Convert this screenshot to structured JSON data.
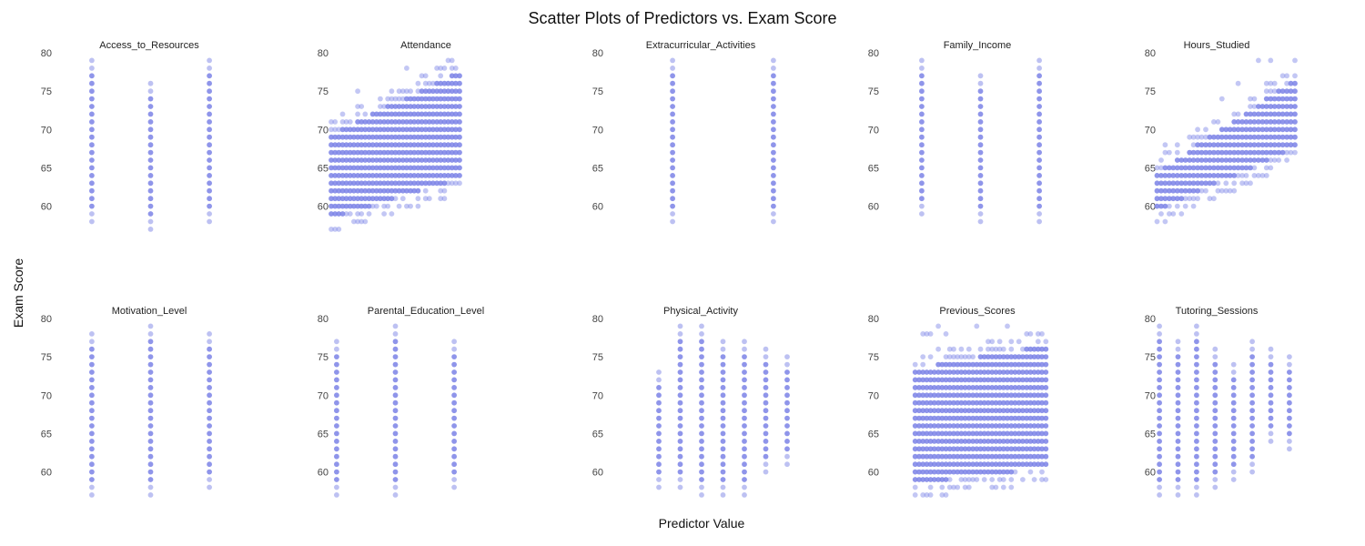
{
  "figure": {
    "title": "Scatter Plots of Predictors vs. Exam Score",
    "xlabel": "Predictor Value",
    "ylabel": "Exam Score",
    "point_color": "#7b83e6"
  },
  "chart_data": [
    {
      "type": "scatter",
      "title": "Access_to_Resources",
      "ylim": [
        56,
        80
      ],
      "yticks": [
        60,
        65,
        70,
        75,
        80
      ],
      "xlim": [
        -0.2,
        2.2
      ],
      "series": [
        {
          "x": 0,
          "y_range": [
            58,
            79
          ]
        },
        {
          "x": 1,
          "y_range": [
            57,
            76
          ]
        },
        {
          "x": 2,
          "y_range": [
            58,
            79
          ]
        }
      ]
    },
    {
      "type": "scatter",
      "title": "Attendance",
      "ylim": [
        56,
        80
      ],
      "yticks": [
        60,
        65,
        70,
        75,
        80
      ],
      "xlim": [
        58,
        102
      ],
      "trend": {
        "x_range": [
          60,
          100
        ],
        "y_low": [
          57,
          62
        ],
        "y_high": [
          71,
          79
        ]
      }
    },
    {
      "type": "scatter",
      "title": "Extracurricular_Activities",
      "ylim": [
        56,
        80
      ],
      "yticks": [
        60,
        65,
        70,
        75,
        80
      ],
      "xlim": [
        -0.2,
        1.2
      ],
      "series": [
        {
          "x": 0,
          "y_range": [
            58,
            79
          ]
        },
        {
          "x": 1,
          "y_range": [
            58,
            79
          ]
        }
      ]
    },
    {
      "type": "scatter",
      "title": "Family_Income",
      "ylim": [
        56,
        80
      ],
      "yticks": [
        60,
        65,
        70,
        75,
        80
      ],
      "xlim": [
        -0.2,
        2.2
      ],
      "series": [
        {
          "x": 0,
          "y_range": [
            59,
            79
          ]
        },
        {
          "x": 1,
          "y_range": [
            58,
            77
          ]
        },
        {
          "x": 2,
          "y_range": [
            58,
            79
          ]
        }
      ]
    },
    {
      "type": "scatter",
      "title": "Hours_Studied",
      "ylim": [
        56,
        80
      ],
      "yticks": [
        60,
        65,
        70,
        75,
        80
      ],
      "xlim": [
        0,
        44
      ],
      "trend": {
        "x_range": [
          1,
          44
        ],
        "y_low": [
          58,
          66
        ],
        "y_high": [
          66,
          78
        ]
      }
    },
    {
      "type": "scatter",
      "title": "Motivation_Level",
      "ylim": [
        56,
        80
      ],
      "yticks": [
        60,
        65,
        70,
        75,
        80
      ],
      "xlim": [
        -0.2,
        2.2
      ],
      "series": [
        {
          "x": 0,
          "y_range": [
            57,
            78
          ]
        },
        {
          "x": 1,
          "y_range": [
            57,
            79
          ]
        },
        {
          "x": 2,
          "y_range": [
            58,
            78
          ]
        }
      ]
    },
    {
      "type": "scatter",
      "title": "Parental_Education_Level",
      "ylim": [
        56,
        80
      ],
      "yticks": [
        60,
        65,
        70,
        75,
        80
      ],
      "xlim": [
        -0.2,
        2.2
      ],
      "series": [
        {
          "x": 0,
          "y_range": [
            57,
            77
          ]
        },
        {
          "x": 1,
          "y_range": [
            57,
            79
          ]
        },
        {
          "x": 2,
          "y_range": [
            58,
            77
          ]
        }
      ]
    },
    {
      "type": "scatter",
      "title": "Physical_Activity",
      "ylim": [
        56,
        80
      ],
      "yticks": [
        60,
        65,
        70,
        75,
        80
      ],
      "xlim": [
        -0.3,
        6.3
      ],
      "series": [
        {
          "x": 0,
          "y_range": [
            58,
            73
          ]
        },
        {
          "x": 1,
          "y_range": [
            58,
            79
          ]
        },
        {
          "x": 2,
          "y_range": [
            57,
            79
          ]
        },
        {
          "x": 3,
          "y_range": [
            57,
            77
          ]
        },
        {
          "x": 4,
          "y_range": [
            57,
            77
          ]
        },
        {
          "x": 5,
          "y_range": [
            60,
            76
          ]
        },
        {
          "x": 6,
          "y_range": [
            61,
            75
          ]
        }
      ]
    },
    {
      "type": "scatter",
      "title": "Previous_Scores",
      "ylim": [
        56,
        80
      ],
      "yticks": [
        60,
        65,
        70,
        75,
        80
      ],
      "xlim": [
        48,
        102
      ],
      "trend": {
        "x_range": [
          50,
          100
        ],
        "y_low": [
          57,
          59
        ],
        "y_high": [
          75,
          78
        ]
      }
    },
    {
      "type": "scatter",
      "title": "Tutoring_Sessions",
      "ylim": [
        56,
        80
      ],
      "yticks": [
        60,
        65,
        70,
        75,
        80
      ],
      "xlim": [
        -0.3,
        7.3
      ],
      "series": [
        {
          "x": 0,
          "y_range": [
            57,
            79
          ]
        },
        {
          "x": 1,
          "y_range": [
            57,
            77
          ]
        },
        {
          "x": 2,
          "y_range": [
            57,
            79
          ]
        },
        {
          "x": 3,
          "y_range": [
            58,
            76
          ]
        },
        {
          "x": 4,
          "y_range": [
            59,
            74
          ]
        },
        {
          "x": 5,
          "y_range": [
            60,
            77
          ]
        },
        {
          "x": 6,
          "y_range": [
            64,
            76
          ]
        },
        {
          "x": 7,
          "y_range": [
            63,
            75
          ]
        }
      ]
    }
  ]
}
